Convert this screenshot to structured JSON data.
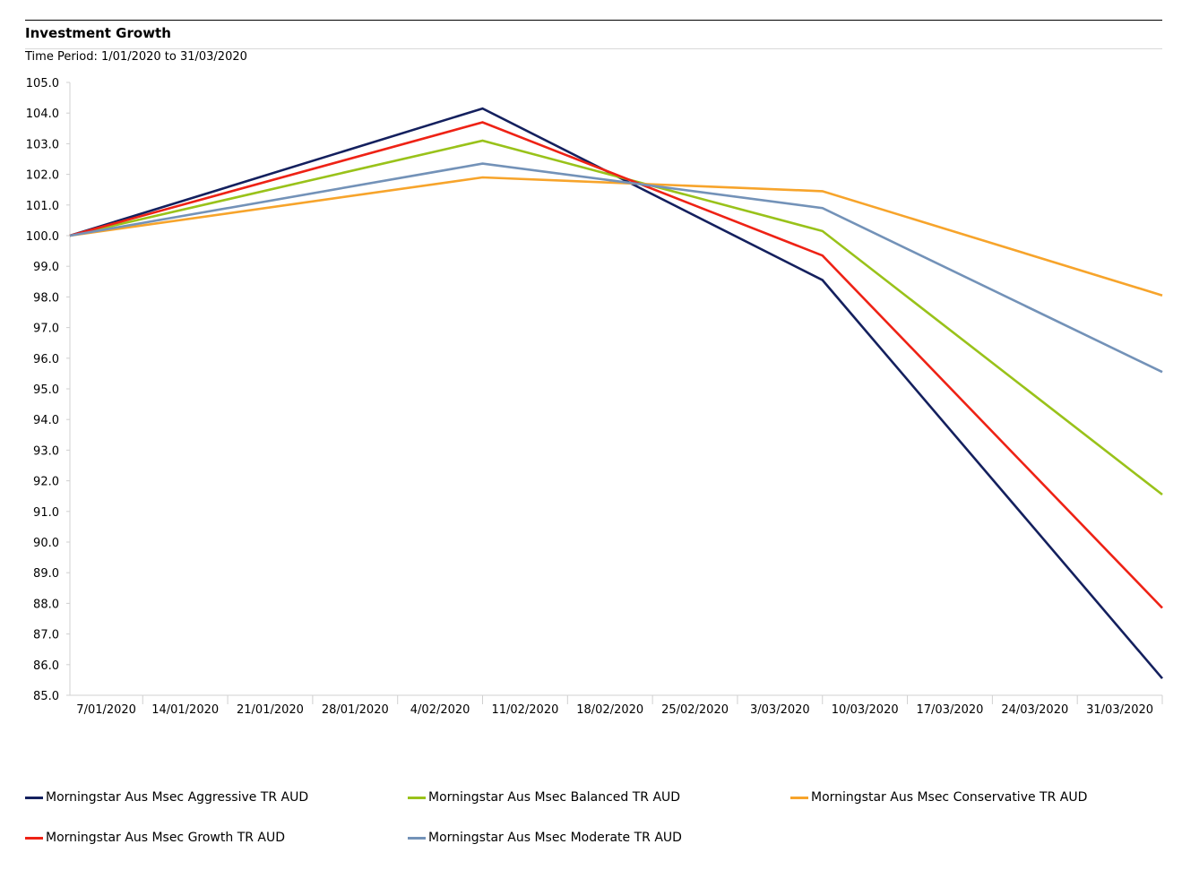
{
  "header": {
    "title": "Investment Growth",
    "time_period": "Time Period: 1/01/2020 to 31/03/2020"
  },
  "chart_data": {
    "type": "line",
    "title": "Investment Growth",
    "subtitle": "Time Period: 1/01/2020 to 31/03/2020",
    "xlabel": "",
    "ylabel": "",
    "ylim": [
      85.0,
      105.0
    ],
    "y_ticks": [
      "85.0",
      "86.0",
      "87.0",
      "88.0",
      "89.0",
      "90.0",
      "91.0",
      "92.0",
      "93.0",
      "94.0",
      "95.0",
      "96.0",
      "97.0",
      "98.0",
      "99.0",
      "100.0",
      "101.0",
      "102.0",
      "103.0",
      "104.0",
      "105.0"
    ],
    "x_tick_labels": [
      "7/01/2020",
      "14/01/2020",
      "21/01/2020",
      "28/01/2020",
      "4/02/2020",
      "11/02/2020",
      "18/02/2020",
      "25/02/2020",
      "3/03/2020",
      "10/03/2020",
      "17/03/2020",
      "24/03/2020",
      "31/03/2020"
    ],
    "x": [
      "1/01/2020",
      "4/02/2020",
      "3/03/2020",
      "31/03/2020"
    ],
    "grid": false,
    "legend_position": "bottom",
    "series": [
      {
        "name": "Morningstar Aus Msec Aggressive TR AUD",
        "color": "#14205e",
        "values": [
          100.0,
          104.15,
          98.55,
          85.55
        ]
      },
      {
        "name": "Morningstar Aus Msec Balanced TR AUD",
        "color": "#99c21a",
        "values": [
          100.0,
          103.1,
          100.15,
          91.55
        ]
      },
      {
        "name": "Morningstar Aus Msec Conservative TR AUD",
        "color": "#f7a42b",
        "values": [
          100.0,
          101.9,
          101.45,
          98.05
        ]
      },
      {
        "name": "Morningstar Aus Msec Growth TR AUD",
        "color": "#ee2215",
        "values": [
          100.0,
          103.7,
          99.35,
          87.85
        ]
      },
      {
        "name": "Morningstar Aus Msec Moderate TR AUD",
        "color": "#7392b8",
        "values": [
          100.0,
          102.35,
          100.9,
          95.55
        ]
      }
    ]
  }
}
